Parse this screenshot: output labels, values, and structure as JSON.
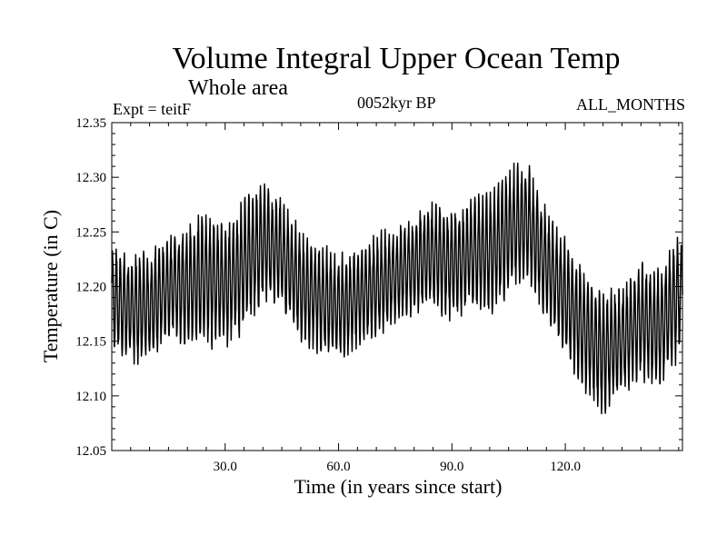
{
  "chart_data": {
    "type": "line",
    "title": "Volume Integral Upper Ocean Temp",
    "subtitle": "Whole area",
    "experiment": "Expt = teitF",
    "period": "0052kyr BP",
    "months": "ALL_MONTHS",
    "xlabel": "Time (in years since start)",
    "ylabel": "Temperature (in C)",
    "xlim": [
      0,
      151
    ],
    "ylim": [
      12.05,
      12.35
    ],
    "x_ticks": [
      30,
      60,
      90,
      120
    ],
    "x_tick_labels": [
      "30.0",
      "60.0",
      "90.0",
      "120.0"
    ],
    "y_ticks": [
      12.05,
      12.1,
      12.15,
      12.2,
      12.25,
      12.3,
      12.35
    ],
    "y_tick_labels": [
      "12.05",
      "12.10",
      "12.15",
      "12.20",
      "12.25",
      "12.30",
      "12.35"
    ],
    "grid": false,
    "cycle": "seasonal (12 months per year)",
    "series": [
      {
        "name": "Volume integral upper ocean temperature",
        "x": [
          0,
          5,
          10,
          15,
          20,
          25,
          30,
          35,
          40,
          45,
          50,
          55,
          60,
          65,
          70,
          75,
          80,
          85,
          90,
          95,
          100,
          105,
          110,
          115,
          120,
          125,
          130,
          135,
          140,
          145,
          151
        ],
        "mean": [
          12.19,
          12.18,
          12.18,
          12.2,
          12.2,
          12.21,
          12.2,
          12.22,
          12.24,
          12.23,
          12.2,
          12.19,
          12.18,
          12.19,
          12.2,
          12.21,
          12.22,
          12.23,
          12.22,
          12.23,
          12.23,
          12.25,
          12.26,
          12.22,
          12.19,
          12.16,
          12.14,
          12.15,
          12.17,
          12.16,
          12.2
        ],
        "amplitude": [
          0.04,
          0.045,
          0.045,
          0.04,
          0.05,
          0.055,
          0.05,
          0.055,
          0.05,
          0.045,
          0.045,
          0.045,
          0.045,
          0.04,
          0.04,
          0.04,
          0.04,
          0.045,
          0.045,
          0.045,
          0.05,
          0.055,
          0.045,
          0.045,
          0.05,
          0.05,
          0.05,
          0.045,
          0.045,
          0.05,
          0.05
        ]
      }
    ]
  }
}
